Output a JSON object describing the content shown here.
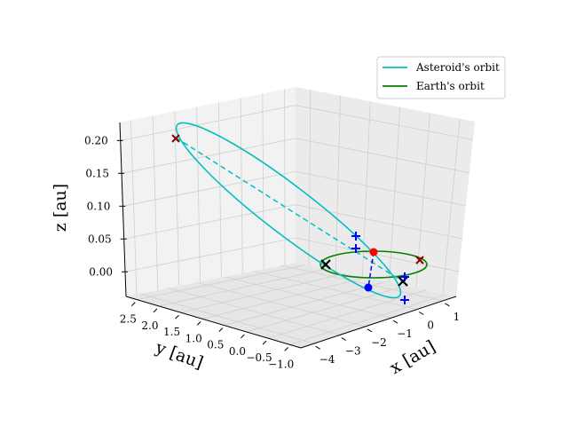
{
  "chart_data": {
    "type": "line3d",
    "xlabel": "$x$ [au]",
    "ylabel": "$y$ [au]",
    "zlabel": "$z$ [au]",
    "xlabel_display": "x [au]",
    "ylabel_display": "y [au]",
    "zlabel_display": "z [au]",
    "x_ticks": [
      "−4",
      "−3",
      "−2",
      "−1",
      "0",
      "1"
    ],
    "y_ticks": [
      "2.5",
      "2.0",
      "1.5",
      "1.0",
      "0.5",
      "0.0",
      "−0.5",
      "−1.0"
    ],
    "z_ticks": [
      "0.20",
      "0.15",
      "0.10",
      "0.05",
      "0.00"
    ],
    "xlim": [
      -4.3,
      1.3
    ],
    "ylim": [
      -1.3,
      2.8
    ],
    "zlim": [
      -0.04,
      0.22
    ],
    "grid": true,
    "legend_position": "upper-right",
    "series": [
      {
        "name": "Asteroid's orbit",
        "color": "#00bfbf",
        "kind": "ellipse",
        "a": 2.2,
        "e": 0.6,
        "inc_deg": 6.5,
        "node_deg": 230,
        "peri_deg": 55
      },
      {
        "name": "Earth's orbit",
        "color": "#008000",
        "kind": "circle",
        "a": 1.0
      }
    ],
    "markers": {
      "dashed_major_axis_color": "#00bfbf",
      "dashed_link_color": "#0000ff",
      "sun_color": "#ff0000",
      "blue_point_color": "#0000ff",
      "x_color": "#000000",
      "dark_x_color": "#8b0000",
      "plus_color": "#0000ff"
    }
  }
}
